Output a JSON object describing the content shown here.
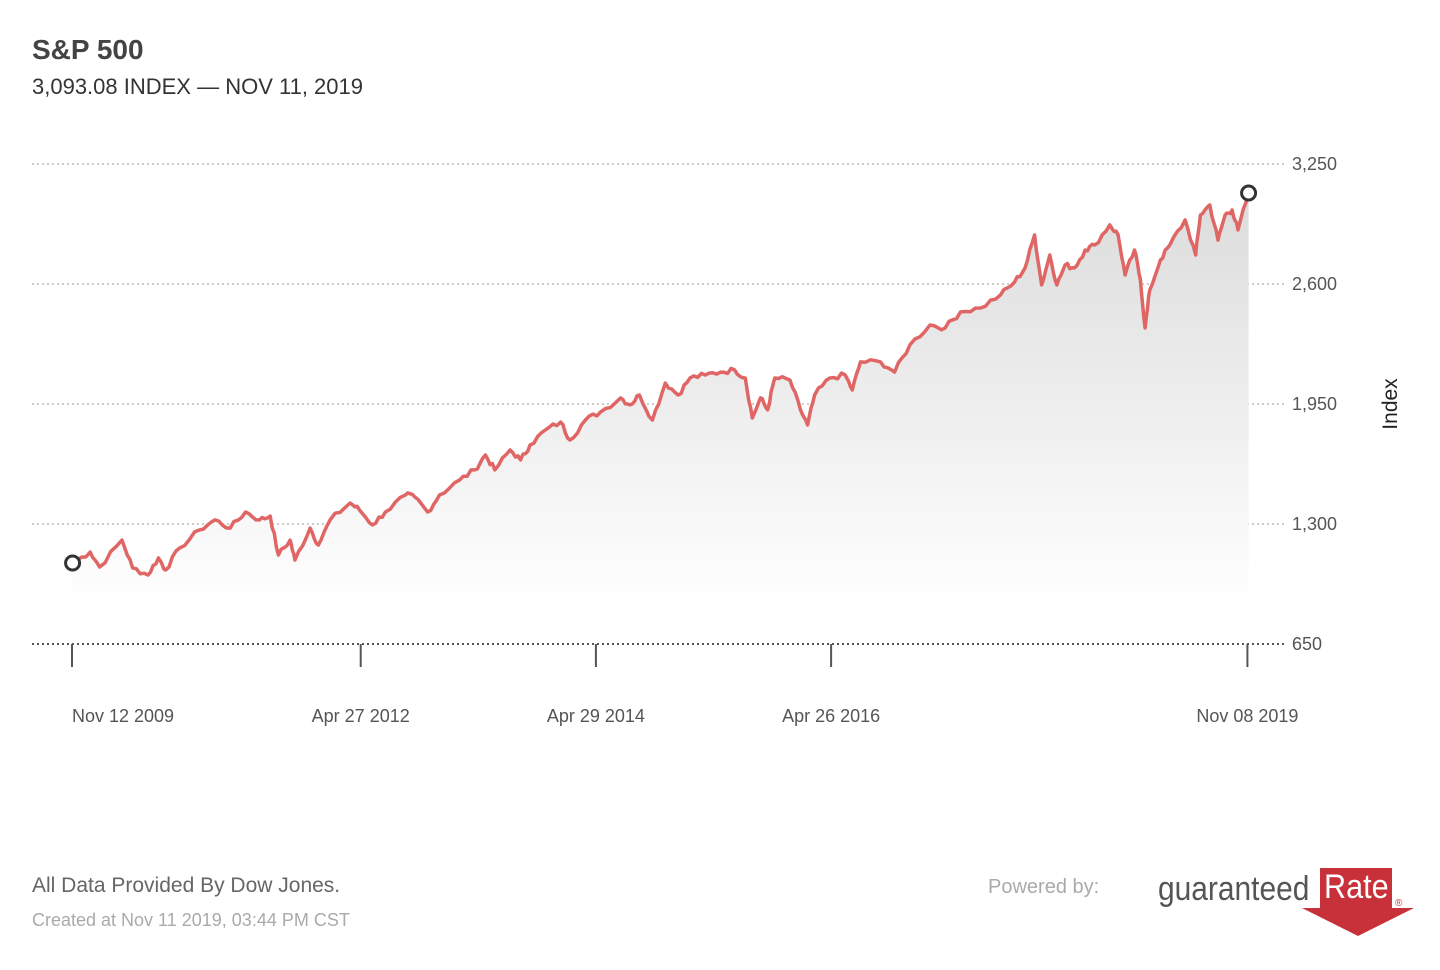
{
  "header": {
    "title": "S&P 500",
    "subtitle": "3,093.08 INDEX — NOV 11, 2019"
  },
  "footer": {
    "source": "All Data Provided By Dow Jones.",
    "created": "Created at Nov 11 2019, 03:44 PM CST",
    "powered_by": "Powered by:",
    "logo_text_1": "guaranteed",
    "logo_text_2": "Rate",
    "logo_reg": "®"
  },
  "colors": {
    "line": "#e06666",
    "marker": "#333333",
    "logo_red": "#c9313a"
  },
  "chart_data": {
    "type": "area",
    "title": "S&P 500",
    "ylabel": "Index",
    "xlabel": "",
    "ylim": [
      650,
      3250
    ],
    "xlim": [
      2009.865,
      2019.865
    ],
    "grid": true,
    "yticks": [
      650,
      1300,
      1950,
      2600,
      3250
    ],
    "ytick_labels": [
      "650",
      "1,300",
      "1,950",
      "2,600",
      "3,250"
    ],
    "xticks": [
      2009.865,
      2012.32,
      2014.32,
      2016.32,
      2019.86
    ],
    "xtick_labels": [
      "Nov 12 2009",
      "Apr 27 2012",
      "Apr 29 2014",
      "Apr 26 2016",
      "Nov 08 2019"
    ],
    "series": [
      {
        "name": "S&P 500",
        "x": [
          2009.87,
          2010.02,
          2010.1,
          2010.29,
          2010.38,
          2010.51,
          2010.6,
          2010.66,
          2010.78,
          2010.95,
          2011.08,
          2011.21,
          2011.34,
          2011.46,
          2011.55,
          2011.62,
          2011.72,
          2011.76,
          2011.89,
          2011.96,
          2012.06,
          2012.23,
          2012.31,
          2012.42,
          2012.53,
          2012.7,
          2012.78,
          2012.89,
          2012.99,
          2013.16,
          2013.29,
          2013.38,
          2013.46,
          2013.59,
          2013.68,
          2013.76,
          2013.89,
          2014.02,
          2014.1,
          2014.23,
          2014.36,
          2014.53,
          2014.61,
          2014.69,
          2014.8,
          2014.91,
          2015.02,
          2015.12,
          2015.25,
          2015.38,
          2015.5,
          2015.59,
          2015.65,
          2015.72,
          2015.78,
          2015.84,
          2015.97,
          2016.06,
          2016.12,
          2016.18,
          2016.31,
          2016.44,
          2016.5,
          2016.57,
          2016.74,
          2016.86,
          2016.99,
          2017.16,
          2017.29,
          2017.42,
          2017.59,
          2017.76,
          2017.88,
          2017.97,
          2018.05,
          2018.11,
          2018.18,
          2018.24,
          2018.31,
          2018.39,
          2018.48,
          2018.56,
          2018.69,
          2018.76,
          2018.82,
          2018.9,
          2018.95,
          2018.99,
          2019.03,
          2019.12,
          2019.2,
          2019.33,
          2019.42,
          2019.46,
          2019.54,
          2019.61,
          2019.67,
          2019.73,
          2019.78,
          2019.87
        ],
        "y": [
          1089,
          1148,
          1067,
          1213,
          1062,
          1024,
          1116,
          1051,
          1170,
          1268,
          1322,
          1278,
          1365,
          1322,
          1343,
          1132,
          1213,
          1105,
          1278,
          1186,
          1322,
          1414,
          1376,
          1295,
          1365,
          1457,
          1446,
          1365,
          1457,
          1538,
          1593,
          1674,
          1593,
          1701,
          1647,
          1728,
          1809,
          1852,
          1755,
          1863,
          1907,
          1983,
          1945,
          1999,
          1863,
          2064,
          1999,
          2091,
          2107,
          2123,
          2134,
          2091,
          1874,
          1983,
          1918,
          2091,
          2080,
          1918,
          1836,
          1999,
          2091,
          2107,
          2026,
          2178,
          2178,
          2123,
          2270,
          2378,
          2362,
          2449,
          2470,
          2541,
          2611,
          2687,
          2866,
          2595,
          2757,
          2595,
          2703,
          2687,
          2784,
          2811,
          2920,
          2866,
          2649,
          2784,
          2622,
          2362,
          2568,
          2730,
          2811,
          2947,
          2757,
          2974,
          3028,
          2838,
          2974,
          3001,
          2893,
          3093.08
        ]
      }
    ],
    "start_marker": {
      "x": 2009.87,
      "y": 1089
    },
    "end_marker": {
      "x": 2019.87,
      "y": 3093.08
    }
  }
}
